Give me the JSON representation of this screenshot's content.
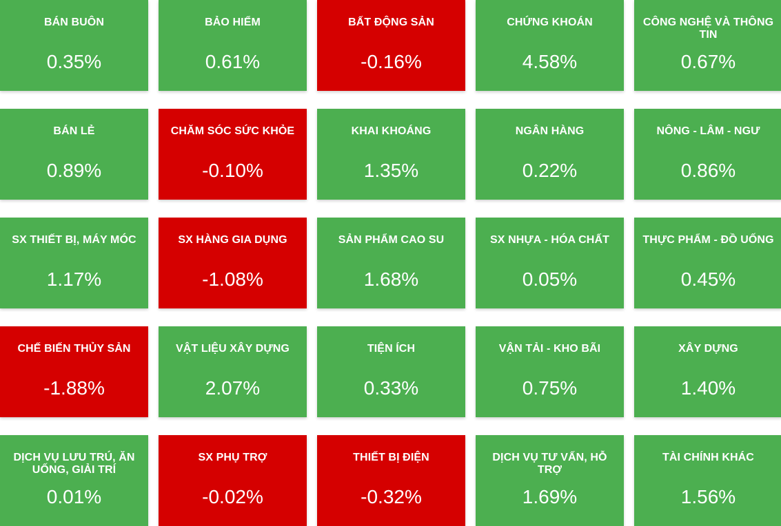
{
  "colors": {
    "positive": "#4caf50",
    "negative": "#d50000",
    "text": "#ffffff"
  },
  "sectors": [
    {
      "name": "BÁN BUÔN",
      "change": "0.35%",
      "trend": "up"
    },
    {
      "name": "BẢO HIỂM",
      "change": "0.61%",
      "trend": "up"
    },
    {
      "name": "BẤT ĐỘNG SẢN",
      "change": "-0.16%",
      "trend": "down"
    },
    {
      "name": "CHỨNG KHOÁN",
      "change": "4.58%",
      "trend": "up"
    },
    {
      "name": "CÔNG NGHỆ VÀ THÔNG TIN",
      "change": "0.67%",
      "trend": "up"
    },
    {
      "name": "BÁN LẺ",
      "change": "0.89%",
      "trend": "up"
    },
    {
      "name": "CHĂM SÓC SỨC KHỎE",
      "change": "-0.10%",
      "trend": "down"
    },
    {
      "name": "KHAI KHOÁNG",
      "change": "1.35%",
      "trend": "up"
    },
    {
      "name": "NGÂN HÀNG",
      "change": "0.22%",
      "trend": "up"
    },
    {
      "name": "NÔNG - LÂM - NGƯ",
      "change": "0.86%",
      "trend": "up"
    },
    {
      "name": "SX THIẾT BỊ, MÁY MÓC",
      "change": "1.17%",
      "trend": "up"
    },
    {
      "name": "SX HÀNG GIA DỤNG",
      "change": "-1.08%",
      "trend": "down"
    },
    {
      "name": "SẢN PHẨM CAO SU",
      "change": "1.68%",
      "trend": "up"
    },
    {
      "name": "SX NHỰA - HÓA CHẤT",
      "change": "0.05%",
      "trend": "up"
    },
    {
      "name": "THỰC PHẨM - ĐỒ UỐNG",
      "change": "0.45%",
      "trend": "up"
    },
    {
      "name": "CHẾ BIẾN THỦY SẢN",
      "change": "-1.88%",
      "trend": "down"
    },
    {
      "name": "VẬT LIỆU XÂY DỰNG",
      "change": "2.07%",
      "trend": "up"
    },
    {
      "name": "TIỆN ÍCH",
      "change": "0.33%",
      "trend": "up"
    },
    {
      "name": "VẬN TẢI - KHO BÃI",
      "change": "0.75%",
      "trend": "up"
    },
    {
      "name": "XÂY DỰNG",
      "change": "1.40%",
      "trend": "up"
    },
    {
      "name": "DỊCH VỤ LƯU TRÚ, ĂN UỐNG, GIẢI TRÍ",
      "change": "0.01%",
      "trend": "up"
    },
    {
      "name": "SX PHỤ TRỢ",
      "change": "-0.02%",
      "trend": "down"
    },
    {
      "name": "THIẾT BỊ ĐIỆN",
      "change": "-0.32%",
      "trend": "down"
    },
    {
      "name": "DỊCH VỤ TƯ VẤN, HỖ TRỢ",
      "change": "1.69%",
      "trend": "up"
    },
    {
      "name": "TÀI CHÍNH KHÁC",
      "change": "1.56%",
      "trend": "up"
    }
  ]
}
